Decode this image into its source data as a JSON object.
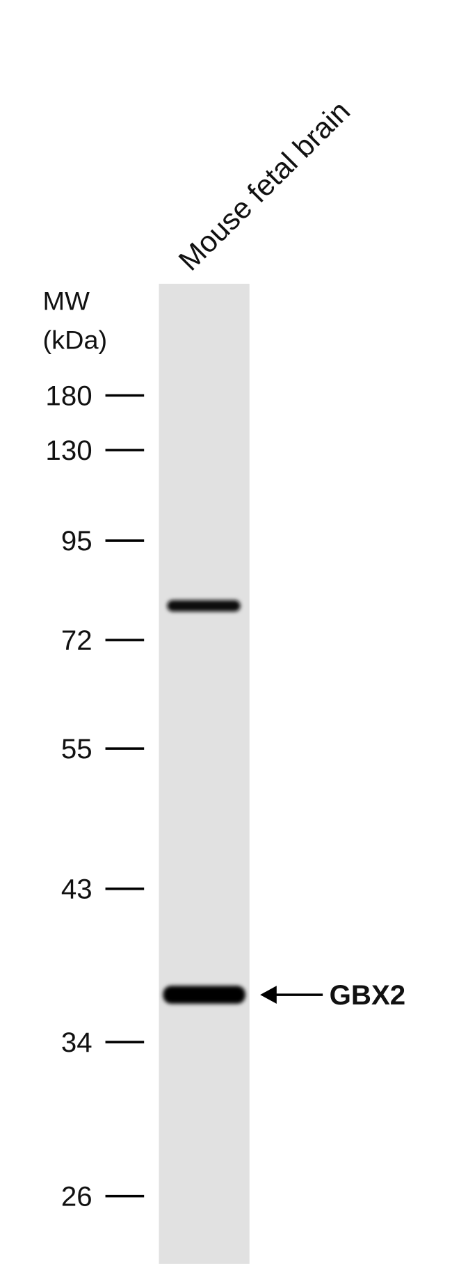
{
  "lane_label": "Mouse fetal brain",
  "mw_label": [
    "MW",
    "(kDa)"
  ],
  "markers": [
    180,
    130,
    95,
    72,
    55,
    43,
    34,
    26
  ],
  "band_label": "GBX2"
}
